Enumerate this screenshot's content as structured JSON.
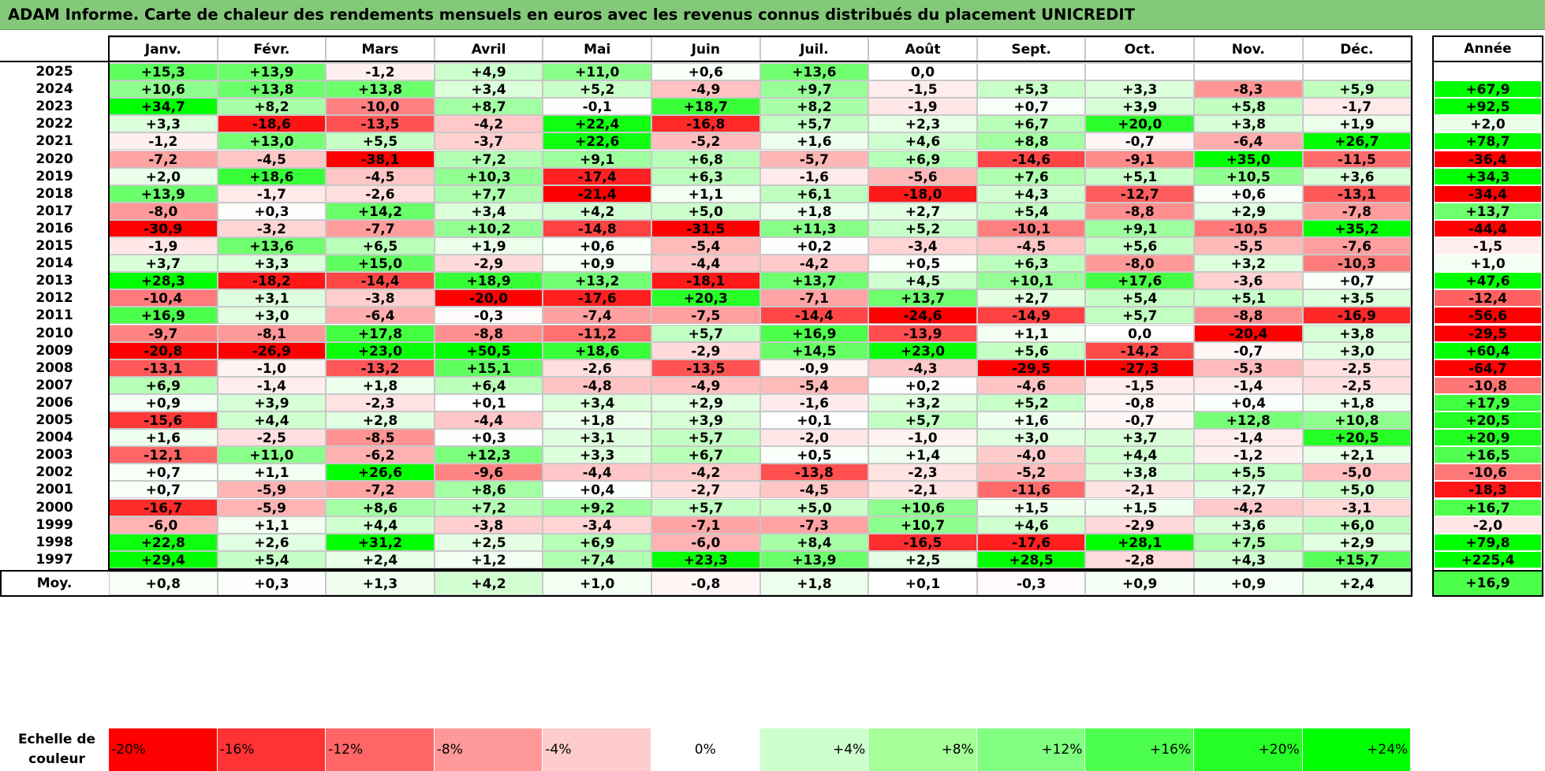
{
  "title": "ADAM Informe. Carte de chaleur des rendements mensuels en euros avec les revenus connus distribués du placement UNICREDIT",
  "chart_data": {
    "type": "heatmap",
    "columns": [
      "Janv.",
      "Févr.",
      "Mars",
      "Avril",
      "Mai",
      "Juin",
      "Juil.",
      "Août",
      "Sept.",
      "Oct.",
      "Nov.",
      "Déc."
    ],
    "year_header": "Année",
    "rows": [
      {
        "label": "2025",
        "values": [
          "+15,3",
          "+13,9",
          "-1,2",
          "+4,9",
          "+11,0",
          "+0,6",
          "+13,6",
          "0,0",
          "",
          "",
          "",
          ""
        ],
        "annual": ""
      },
      {
        "label": "2024",
        "values": [
          "+10,6",
          "+13,8",
          "+13,8",
          "+3,4",
          "+5,2",
          "-4,9",
          "+9,7",
          "-1,5",
          "+5,3",
          "+3,3",
          "-8,3",
          "+5,9"
        ],
        "annual": "+67,9"
      },
      {
        "label": "2023",
        "values": [
          "+34,7",
          "+8,2",
          "-10,0",
          "+8,7",
          "-0,1",
          "+18,7",
          "+8,2",
          "-1,9",
          "+0,7",
          "+3,9",
          "+5,8",
          "-1,7"
        ],
        "annual": "+92,5"
      },
      {
        "label": "2022",
        "values": [
          "+3,3",
          "-18,6",
          "-13,5",
          "-4,2",
          "+22,4",
          "-16,8",
          "+5,7",
          "+2,3",
          "+6,7",
          "+20,0",
          "+3,8",
          "+1,9"
        ],
        "annual": "+2,0"
      },
      {
        "label": "2021",
        "values": [
          "-1,2",
          "+13,0",
          "+5,5",
          "-3,7",
          "+22,6",
          "-5,2",
          "+1,6",
          "+4,6",
          "+8,8",
          "-0,7",
          "-6,4",
          "+26,7"
        ],
        "annual": "+78,7"
      },
      {
        "label": "2020",
        "values": [
          "-7,2",
          "-4,5",
          "-38,1",
          "+7,2",
          "+9,1",
          "+6,8",
          "-5,7",
          "+6,9",
          "-14,6",
          "-9,1",
          "+35,0",
          "-11,5"
        ],
        "annual": "-36,4"
      },
      {
        "label": "2019",
        "values": [
          "+2,0",
          "+18,6",
          "-4,5",
          "+10,3",
          "-17,4",
          "+6,3",
          "-1,6",
          "-5,6",
          "+7,6",
          "+5,1",
          "+10,5",
          "+3,6"
        ],
        "annual": "+34,3"
      },
      {
        "label": "2018",
        "values": [
          "+13,9",
          "-1,7",
          "-2,6",
          "+7,7",
          "-21,4",
          "+1,1",
          "+6,1",
          "-18,0",
          "+4,3",
          "-12,7",
          "+0,6",
          "-13,1"
        ],
        "annual": "-34,4"
      },
      {
        "label": "2017",
        "values": [
          "-8,0",
          "+0,3",
          "+14,2",
          "+3,4",
          "+4,2",
          "+5,0",
          "+1,8",
          "+2,7",
          "+5,4",
          "-8,8",
          "+2,9",
          "-7,8"
        ],
        "annual": "+13,7"
      },
      {
        "label": "2016",
        "values": [
          "-30,9",
          "-3,2",
          "-7,7",
          "+10,2",
          "-14,8",
          "-31,5",
          "+11,3",
          "+5,2",
          "-10,1",
          "+9,1",
          "-10,5",
          "+35,2"
        ],
        "annual": "-44,4"
      },
      {
        "label": "2015",
        "values": [
          "-1,9",
          "+13,6",
          "+6,5",
          "+1,9",
          "+0,6",
          "-5,4",
          "+0,2",
          "-3,4",
          "-4,5",
          "+5,6",
          "-5,5",
          "-7,6"
        ],
        "annual": "-1,5"
      },
      {
        "label": "2014",
        "values": [
          "+3,7",
          "+3,3",
          "+15,0",
          "-2,9",
          "+0,9",
          "-4,4",
          "-4,2",
          "+0,5",
          "+6,3",
          "-8,0",
          "+3,2",
          "-10,3"
        ],
        "annual": "+1,0"
      },
      {
        "label": "2013",
        "values": [
          "+28,3",
          "-18,2",
          "-14,4",
          "+18,9",
          "+13,2",
          "-18,1",
          "+13,7",
          "+4,5",
          "+10,1",
          "+17,6",
          "-3,6",
          "+0,7"
        ],
        "annual": "+47,6"
      },
      {
        "label": "2012",
        "values": [
          "-10,4",
          "+3,1",
          "-3,8",
          "-20,0",
          "-17,6",
          "+20,3",
          "-7,1",
          "+13,7",
          "+2,7",
          "+5,4",
          "+5,1",
          "+3,5"
        ],
        "annual": "-12,4"
      },
      {
        "label": "2011",
        "values": [
          "+16,9",
          "+3,0",
          "-6,4",
          "-0,3",
          "-7,4",
          "-7,5",
          "-14,4",
          "-24,6",
          "-14,9",
          "+5,7",
          "-8,8",
          "-16,9"
        ],
        "annual": "-56,6"
      },
      {
        "label": "2010",
        "values": [
          "-9,7",
          "-8,1",
          "+17,8",
          "-8,8",
          "-11,2",
          "+5,7",
          "+16,9",
          "-13,9",
          "+1,1",
          "0,0",
          "-20,4",
          "+3,8"
        ],
        "annual": "-29,5"
      },
      {
        "label": "2009",
        "values": [
          "-20,8",
          "-26,9",
          "+23,0",
          "+50,5",
          "+18,6",
          "-2,9",
          "+14,5",
          "+23,0",
          "+5,6",
          "-14,2",
          "-0,7",
          "+3,0"
        ],
        "annual": "+60,4"
      },
      {
        "label": "2008",
        "values": [
          "-13,1",
          "-1,0",
          "-13,2",
          "+15,1",
          "-2,6",
          "-13,5",
          "-0,9",
          "-4,3",
          "-29,5",
          "-27,3",
          "-5,3",
          "-2,5"
        ],
        "annual": "-64,7"
      },
      {
        "label": "2007",
        "values": [
          "+6,9",
          "-1,4",
          "+1,8",
          "+6,4",
          "-4,8",
          "-4,9",
          "-5,4",
          "+0,2",
          "-4,6",
          "-1,5",
          "-1,4",
          "-2,5"
        ],
        "annual": "-10,8"
      },
      {
        "label": "2006",
        "values": [
          "+0,9",
          "+3,9",
          "-2,3",
          "+0,1",
          "+3,4",
          "+2,9",
          "-1,6",
          "+3,2",
          "+5,2",
          "-0,8",
          "+0,4",
          "+1,8"
        ],
        "annual": "+17,9"
      },
      {
        "label": "2005",
        "values": [
          "-15,6",
          "+4,4",
          "+2,8",
          "-4,4",
          "+1,8",
          "+3,9",
          "+0,1",
          "+5,7",
          "+1,6",
          "-0,7",
          "+12,8",
          "+10,8"
        ],
        "annual": "+20,5"
      },
      {
        "label": "2004",
        "values": [
          "+1,6",
          "-2,5",
          "-8,5",
          "+0,3",
          "+3,1",
          "+5,7",
          "-2,0",
          "-1,0",
          "+3,0",
          "+3,7",
          "-1,4",
          "+20,5"
        ],
        "annual": "+20,9"
      },
      {
        "label": "2003",
        "values": [
          "-12,1",
          "+11,0",
          "-6,2",
          "+12,3",
          "+3,3",
          "+6,7",
          "+0,5",
          "+1,4",
          "-4,0",
          "+4,4",
          "-1,2",
          "+2,1"
        ],
        "annual": "+16,5"
      },
      {
        "label": "2002",
        "values": [
          "+0,7",
          "+1,1",
          "+26,6",
          "-9,6",
          "-4,4",
          "-4,2",
          "-13,8",
          "-2,3",
          "-5,2",
          "+3,8",
          "+5,5",
          "-5,0"
        ],
        "annual": "-10,6"
      },
      {
        "label": "2001",
        "values": [
          "+0,7",
          "-5,9",
          "-7,2",
          "+8,6",
          "+0,4",
          "-2,7",
          "-4,5",
          "-2,1",
          "-11,6",
          "-2,1",
          "+2,7",
          "+5,0"
        ],
        "annual": "-18,3"
      },
      {
        "label": "2000",
        "values": [
          "-16,7",
          "-5,9",
          "+8,6",
          "+7,2",
          "+9,2",
          "+5,7",
          "+5,0",
          "+10,6",
          "+1,5",
          "+1,5",
          "-4,2",
          "-3,1"
        ],
        "annual": "+16,7"
      },
      {
        "label": "1999",
        "values": [
          "-6,0",
          "+1,1",
          "+4,4",
          "-3,8",
          "-3,4",
          "-7,1",
          "-7,3",
          "+10,7",
          "+4,6",
          "-2,9",
          "+3,6",
          "+6,0"
        ],
        "annual": "-2,0"
      },
      {
        "label": "1998",
        "values": [
          "+22,8",
          "+2,6",
          "+31,2",
          "+2,5",
          "+6,9",
          "-6,0",
          "+8,4",
          "-16,5",
          "-17,6",
          "+28,1",
          "+7,5",
          "+2,9"
        ],
        "annual": "+79,8"
      },
      {
        "label": "1997",
        "values": [
          "+29,4",
          "+5,4",
          "+2,4",
          "+1,2",
          "+7,4",
          "+23,3",
          "+13,9",
          "+2,5",
          "+28,5",
          "-2,8",
          "+4,3",
          "+15,7"
        ],
        "annual": "+225,4"
      }
    ],
    "average": {
      "label": "Moy.",
      "values": [
        "+0,8",
        "+0,3",
        "+1,3",
        "+4,2",
        "+1,0",
        "-0,8",
        "+1,8",
        "+0,1",
        "-0,3",
        "+0,9",
        "+0,9",
        "+2,4"
      ],
      "annual": "+16,9"
    },
    "legend": {
      "title_line1": "Echelle de",
      "title_line2": "couleur",
      "steps": [
        "-20%",
        "-16%",
        "-12%",
        "-8%",
        "-4%",
        "0%",
        "+4%",
        "+8%",
        "+12%",
        "+16%",
        "+20%",
        "+24%"
      ],
      "colors": [
        "#ff0000",
        "#ff3333",
        "#ff6666",
        "#ff9999",
        "#ffcccc",
        "#ffffff",
        "#ccffcc",
        "#a6ff99",
        "#80ff80",
        "#4dff4d",
        "#26ff26",
        "#00ff00"
      ]
    },
    "color_scale": {
      "neg_full": -20,
      "pos_full": 24,
      "neg_color": "#ff0000",
      "pos_color": "#00ff00",
      "mid_color": "#ffffff"
    }
  }
}
